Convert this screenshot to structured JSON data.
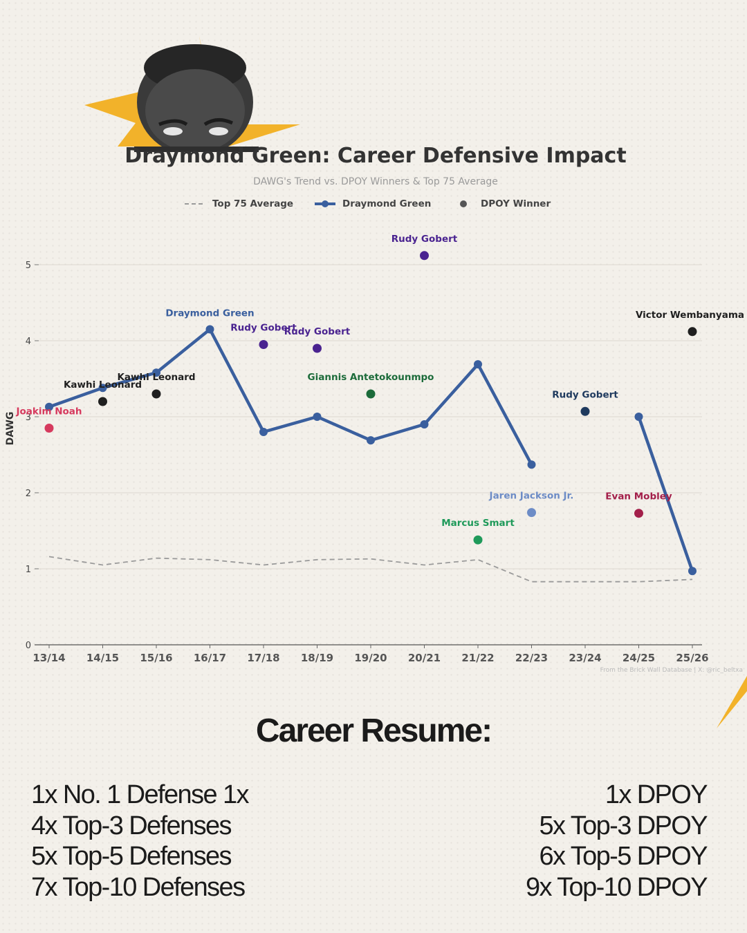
{
  "header": {
    "title": "Draymond Green: Career Defensive Impact",
    "subtitle": "DAWG's Trend vs. DPOY Winners & Top 75 Average"
  },
  "legend": {
    "items": [
      {
        "label": "Top 75 Average",
        "style": "dashed-line",
        "color": "#9a9a9a"
      },
      {
        "label": "Draymond Green",
        "style": "line-marker",
        "color": "#3a5f9e"
      },
      {
        "label": "DPOY Winner",
        "style": "dot",
        "color": "#555555"
      }
    ]
  },
  "chart_data": {
    "type": "line",
    "title": "Draymond Green: Career Defensive Impact",
    "subtitle": "DAWG's Trend vs. DPOY Winners & Top 75 Average",
    "xlabel": "",
    "ylabel": "DAWG",
    "ylim": [
      0,
      5.5
    ],
    "yticks": [
      0,
      1,
      2,
      3,
      4,
      5
    ],
    "grid": true,
    "legend_position": "top-center",
    "categories": [
      "13/14",
      "14/15",
      "15/16",
      "16/17",
      "17/18",
      "18/19",
      "19/20",
      "20/21",
      "21/22",
      "22/23",
      "23/24",
      "24/25",
      "25/26"
    ],
    "series": [
      {
        "name": "Draymond Green",
        "color": "#3a5f9e",
        "values": [
          3.13,
          3.38,
          3.58,
          4.15,
          2.8,
          3.0,
          2.69,
          2.9,
          3.69,
          2.37,
          null,
          3.0,
          0.97
        ],
        "annotation": {
          "text": "Draymond Green",
          "index": 3
        }
      },
      {
        "name": "Top 75 Average",
        "color": "#9a9a9a",
        "style": "dashed",
        "values": [
          1.16,
          1.05,
          1.14,
          1.12,
          1.05,
          1.12,
          1.13,
          1.05,
          1.12,
          0.83,
          0.83,
          0.83,
          0.86
        ]
      }
    ],
    "dpoy_winners": [
      {
        "season": "13/14",
        "name": "Joakim Noah",
        "value": 2.85,
        "color": "#d63a5e"
      },
      {
        "season": "14/15",
        "name": "Kawhi Leonard",
        "value": 3.2,
        "color": "#1f1f1f"
      },
      {
        "season": "15/16",
        "name": "Kawhi Leonard",
        "value": 3.3,
        "color": "#1f1f1f"
      },
      {
        "season": "17/18",
        "name": "Rudy Gobert",
        "value": 3.95,
        "color": "#4a2390"
      },
      {
        "season": "18/19",
        "name": "Rudy Gobert",
        "value": 3.9,
        "color": "#4a2390"
      },
      {
        "season": "19/20",
        "name": "Giannis Antetokounmpo",
        "value": 3.3,
        "color": "#1c6b3a"
      },
      {
        "season": "20/21",
        "name": "Rudy Gobert",
        "value": 5.12,
        "color": "#4a2390"
      },
      {
        "season": "21/22",
        "name": "Marcus Smart",
        "value": 1.38,
        "color": "#1f9a5a"
      },
      {
        "season": "22/23",
        "name": "Jaren Jackson Jr.",
        "value": 1.74,
        "color": "#6d8cc6"
      },
      {
        "season": "23/24",
        "name": "Rudy Gobert",
        "value": 3.07,
        "color": "#1f3a5e"
      },
      {
        "season": "24/25",
        "name": "Evan Mobley",
        "value": 1.73,
        "color": "#a31f4a"
      },
      {
        "season": "25/26",
        "name": "Victor Wembanyama",
        "value": 4.12,
        "color": "#1f1f1f"
      }
    ],
    "source": "From the Brick Wall Database | X: @ric_beltxa"
  },
  "resume": {
    "title": "Career Resume:",
    "left": [
      "1x No. 1 Defense 1x",
      "4x Top-3 Defenses",
      "5x Top-5 Defenses",
      "7x Top-10 Defenses"
    ],
    "right": [
      "1x DPOY",
      "5x Top-3 DPOY",
      "6x Top-5 DPOY",
      "9x Top-10 DPOY"
    ]
  },
  "colors": {
    "background": "#f3f0ea",
    "accent_yellow": "#f2b22a",
    "line_blue": "#3a5f9e"
  }
}
